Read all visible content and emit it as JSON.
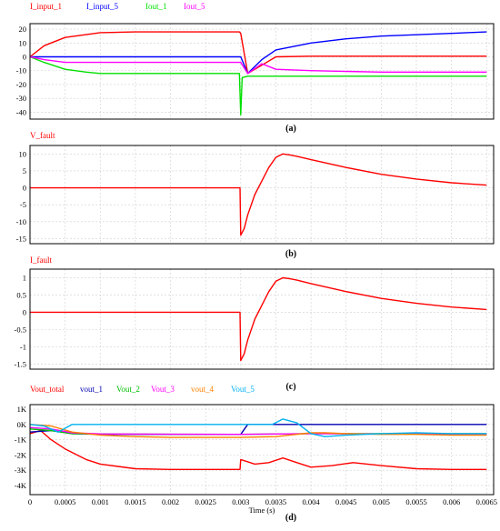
{
  "chart_data": [
    {
      "type": "line",
      "caption": "(a)",
      "xlim": [
        0,
        0.0066
      ],
      "ylim": [
        -45,
        24
      ],
      "yticks": [
        20,
        10,
        0,
        -10,
        -20,
        -30,
        -40
      ],
      "ytick_labels": [
        "20",
        "10",
        "0",
        "-10",
        "-20",
        "-30",
        "-40"
      ],
      "series": [
        {
          "name": "I_input_1",
          "color": "#ff0000",
          "x": [
            0,
            0.0002,
            0.0005,
            0.001,
            0.0015,
            0.002,
            0.0025,
            0.00298,
            0.003,
            0.0031,
            0.0033,
            0.0035,
            0.004,
            0.005,
            0.0065
          ],
          "y": [
            0,
            8,
            14,
            17.5,
            18,
            18,
            18,
            18,
            17,
            -12,
            -6,
            0,
            0.5,
            0.5,
            0.5
          ]
        },
        {
          "name": "I_input_5",
          "color": "#0000ff",
          "x": [
            0,
            0.0005,
            0.001,
            0.002,
            0.003,
            0.0031,
            0.0033,
            0.0035,
            0.004,
            0.0045,
            0.005,
            0.0055,
            0.006,
            0.0065
          ],
          "y": [
            0,
            0,
            0,
            0,
            0,
            -12,
            -2,
            5,
            10,
            13,
            15,
            16,
            17,
            18
          ]
        },
        {
          "name": "Iout_1",
          "color": "#00e000",
          "x": [
            0,
            0.0002,
            0.0005,
            0.0008,
            0.001,
            0.0015,
            0.002,
            0.0025,
            0.00298,
            0.003,
            0.00302,
            0.0031,
            0.004,
            0.005,
            0.0065
          ],
          "y": [
            0,
            -4,
            -9,
            -11,
            -12,
            -12,
            -12,
            -12,
            -12,
            -42,
            -15,
            -14,
            -14,
            -14,
            -14
          ]
        },
        {
          "name": "Iout_5",
          "color": "#ff00ff",
          "x": [
            0,
            0.0002,
            0.0005,
            0.001,
            0.0015,
            0.002,
            0.0025,
            0.003,
            0.0031,
            0.0033,
            0.0035,
            0.004,
            0.005,
            0.0065
          ],
          "y": [
            0,
            -2,
            -4,
            -4,
            -4,
            -4,
            -4,
            -4,
            -12,
            -5,
            -9,
            -10,
            -11,
            -11
          ]
        }
      ]
    },
    {
      "type": "line",
      "caption": "(b)",
      "xlim": [
        0,
        0.0066
      ],
      "ylim": [
        -16.5,
        12.5
      ],
      "yticks": [
        10,
        5,
        0,
        -5,
        -10,
        -15
      ],
      "ytick_labels": [
        "10",
        "5",
        "0",
        "-5",
        "-10",
        "-15"
      ],
      "series": [
        {
          "name": "V_fault",
          "color": "#ff0000",
          "x": [
            0,
            0.00299,
            0.003,
            0.00305,
            0.0031,
            0.0032,
            0.0033,
            0.0034,
            0.0035,
            0.0036,
            0.0037,
            0.0038,
            0.004,
            0.0045,
            0.005,
            0.0055,
            0.006,
            0.0065
          ],
          "y": [
            0,
            0,
            -14,
            -12,
            -8,
            -2,
            2,
            6,
            9,
            10,
            9.7,
            9.3,
            8.3,
            6,
            4,
            2.6,
            1.5,
            0.8
          ]
        }
      ]
    },
    {
      "type": "line",
      "caption": "(c)",
      "xlim": [
        0,
        0.0066
      ],
      "ylim": [
        -1.65,
        1.25
      ],
      "yticks": [
        1,
        0.5,
        0,
        -0.5,
        -1,
        -1.5
      ],
      "ytick_labels": [
        "1",
        "0.5",
        "0",
        "-0.5",
        "-1",
        "-1.5"
      ],
      "series": [
        {
          "name": "I_fault",
          "color": "#ff0000",
          "x": [
            0,
            0.00299,
            0.003,
            0.00305,
            0.0031,
            0.0032,
            0.0033,
            0.0034,
            0.0035,
            0.0036,
            0.0037,
            0.0038,
            0.004,
            0.0045,
            0.005,
            0.0055,
            0.006,
            0.0065
          ],
          "y": [
            0,
            0,
            -1.4,
            -1.2,
            -0.8,
            -0.2,
            0.2,
            0.6,
            0.9,
            1.0,
            0.97,
            0.93,
            0.83,
            0.6,
            0.4,
            0.26,
            0.15,
            0.08
          ]
        }
      ]
    },
    {
      "type": "line",
      "caption": "(d)",
      "xlabel": "Time (s)",
      "xlim": [
        0,
        0.0066
      ],
      "ylim": [
        -4600,
        1300
      ],
      "yticks": [
        1000,
        0,
        -1000,
        -2000,
        -3000,
        -4000
      ],
      "ytick_labels": [
        "1K",
        "0K",
        "-1K",
        "-2K",
        "-3K",
        "-4K"
      ],
      "xticks": [
        0,
        0.0005,
        0.001,
        0.0015,
        0.002,
        0.0025,
        0.003,
        0.0035,
        0.004,
        0.0045,
        0.005,
        0.0055,
        0.006,
        0.0065
      ],
      "xtick_labels": [
        "0",
        "0.0005",
        "0.001",
        "0.0015",
        "0.002",
        "0.0025",
        "0.003",
        "0.0035",
        "0.004",
        "0.0045",
        "0.005",
        "0.0055",
        "0.006",
        "0.0065"
      ],
      "series": [
        {
          "name": "Vout_total",
          "color": "#ff0000",
          "x": [
            0,
            0.00015,
            0.0003,
            0.0005,
            0.0008,
            0.001,
            0.0015,
            0.002,
            0.0025,
            0.00299,
            0.003,
            0.0032,
            0.0034,
            0.0036,
            0.0038,
            0.004,
            0.0043,
            0.0046,
            0.005,
            0.0055,
            0.006,
            0.0065
          ],
          "y": [
            -600,
            -400,
            -1000,
            -1600,
            -2300,
            -2600,
            -2900,
            -2950,
            -2950,
            -2950,
            -2300,
            -2600,
            -2500,
            -2200,
            -2500,
            -2800,
            -2700,
            -2500,
            -2700,
            -2900,
            -2950,
            -2950
          ]
        },
        {
          "name": "vout_1",
          "color": "#0000b0",
          "x": [
            0,
            0.0003,
            0.0006,
            0.001,
            0.002,
            0.003,
            0.0031,
            0.004,
            0.005,
            0.0065
          ],
          "y": [
            -500,
            -400,
            -600,
            -650,
            -650,
            -650,
            0,
            0,
            0,
            0
          ]
        },
        {
          "name": "Vout_2",
          "color": "#00c000",
          "x": [
            0,
            0.0003,
            0.0006,
            0.001,
            0.002,
            0.003,
            0.004,
            0.005,
            0.0065
          ],
          "y": [
            -300,
            -400,
            -600,
            -620,
            -640,
            -650,
            -600,
            -600,
            -600
          ]
        },
        {
          "name": "Vout_3",
          "color": "#ff00ff",
          "x": [
            0,
            0.0003,
            0.0006,
            0.001,
            0.002,
            0.003,
            0.004,
            0.005,
            0.0065
          ],
          "y": [
            -200,
            -300,
            -550,
            -620,
            -640,
            -650,
            -600,
            -620,
            -620
          ]
        },
        {
          "name": "vout_4",
          "color": "#ff8000",
          "x": [
            0,
            0.0003,
            0.0006,
            0.001,
            0.0015,
            0.002,
            0.0025,
            0.003,
            0.0035,
            0.0038,
            0.004,
            0.0042,
            0.0045,
            0.005,
            0.0055,
            0.006,
            0.0065
          ],
          "y": [
            0,
            -100,
            -500,
            -700,
            -800,
            -850,
            -850,
            -850,
            -800,
            -650,
            -550,
            -550,
            -600,
            -650,
            -650,
            -700,
            -700
          ]
        },
        {
          "name": "Vout_5",
          "color": "#00b0f0",
          "x": [
            0,
            0.0002,
            0.0004,
            0.0006,
            0.001,
            0.002,
            0.0029,
            0.003,
            0.00345,
            0.0036,
            0.0038,
            0.004,
            0.0042,
            0.0045,
            0.005,
            0.0055,
            0.006,
            0.0065
          ],
          "y": [
            0,
            -100,
            -500,
            0,
            0,
            0,
            0,
            0,
            0,
            350,
            100,
            -600,
            -800,
            -700,
            -600,
            -550,
            -600,
            -600
          ]
        }
      ]
    }
  ]
}
